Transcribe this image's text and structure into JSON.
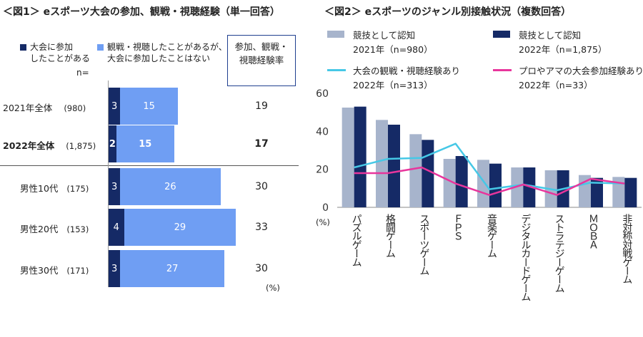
{
  "fig1": {
    "title": "＜図1＞ eスポーツ大会の参加、観戦・視聴経験（単一回答）",
    "legend": [
      {
        "label": "大会に参加\nしたことがある",
        "color": "#152a66"
      },
      {
        "label": "観戦・視聴したことがあるが、\n大会に参加したことはない",
        "color": "#6f9ef3"
      }
    ],
    "n_label": "n=",
    "rate_header": "参加、観戦・\n視聴経験率",
    "unit": "(%)",
    "chart_data": {
      "type": "bar",
      "orientation": "horizontal-stacked",
      "categories": [
        "2021年全体",
        "2022年全体",
        "男性10代",
        "男性20代",
        "男性30代"
      ],
      "n": [
        "(980)",
        "(1,875)",
        "(175)",
        "(153)",
        "(171)"
      ],
      "series": [
        {
          "name": "大会に参加したことがある",
          "values": [
            3,
            2,
            3,
            4,
            3
          ]
        },
        {
          "name": "観戦・視聴したことがあるが、大会に参加したことはない",
          "values": [
            15,
            15,
            26,
            29,
            27
          ]
        }
      ],
      "rate": [
        19,
        17,
        30,
        33,
        30
      ]
    }
  },
  "fig2": {
    "title": "＜図2＞ eスポーツのジャンル別接触状況（複数回答）",
    "legend": [
      {
        "label": "競技として認知\n2021年（n=980）",
        "color": "#a7b4cc",
        "kind": "box"
      },
      {
        "label": "競技として認知\n2022年（n=1,875）",
        "color": "#152a66",
        "kind": "box"
      },
      {
        "label": "大会の観戦・視聴経験あり\n2022年（n=313）",
        "color": "#46c8e6",
        "kind": "line"
      },
      {
        "label": "プロやアマの大会参加経験あり\n2022年（n=33）",
        "color": "#e8359c",
        "kind": "line"
      }
    ],
    "unit": "(%)",
    "chart_data": {
      "type": "bar",
      "categories": [
        "パズルゲーム",
        "格闘ゲーム",
        "スポーツゲーム",
        "ＦＰＳ",
        "音楽ゲーム",
        "デジタルカードゲーム",
        "ストラテジーゲーム",
        "ＭＯＢＡ",
        "非対称対戦ゲーム"
      ],
      "series": [
        {
          "name": "競技として認知 2021年（n=980）",
          "kind": "bar",
          "values": [
            52.5,
            46,
            38.5,
            25.5,
            25,
            21,
            19.5,
            17,
            16
          ]
        },
        {
          "name": "競技として認知 2022年（n=1,875）",
          "kind": "bar",
          "values": [
            53,
            43.5,
            35.5,
            27,
            23,
            21,
            19.5,
            15.5,
            15.5
          ]
        },
        {
          "name": "大会の観戦・視聴経験あり 2022年（n=313）",
          "kind": "line",
          "values": [
            21,
            25.5,
            26,
            33.5,
            9.5,
            12,
            9,
            13,
            12.5
          ]
        },
        {
          "name": "プロやアマの大会参加経験あり 2022年（n=33）",
          "kind": "line",
          "values": [
            18,
            18,
            21,
            12.5,
            6.5,
            12,
            6.5,
            15,
            12.5
          ]
        }
      ],
      "ylim": [
        0,
        60
      ],
      "yticks": [
        "0",
        "20",
        "40",
        "60"
      ],
      "grid": false
    }
  }
}
